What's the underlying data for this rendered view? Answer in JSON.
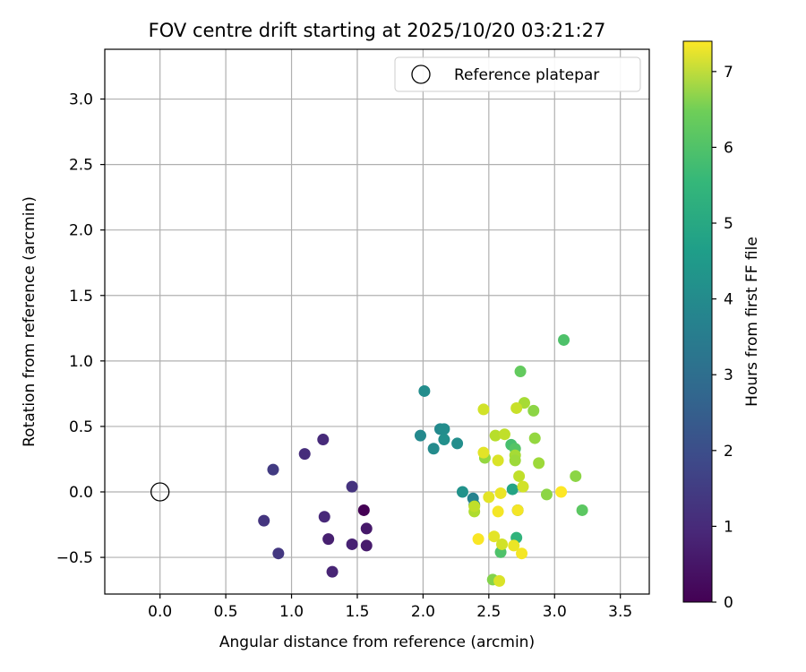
{
  "chart_data": {
    "type": "scatter",
    "title": "FOV centre drift starting at 2025/10/20 03:21:27",
    "xlabel": "Angular distance from reference (arcmin)",
    "ylabel": "Rotation from reference (arcmin)",
    "xlim": [
      -0.42,
      3.72
    ],
    "ylim": [
      -0.78,
      3.38
    ],
    "xticks": [
      0.0,
      0.5,
      1.0,
      1.5,
      2.0,
      2.5,
      3.0,
      3.5
    ],
    "xtick_labels": [
      "0.0",
      "0.5",
      "1.0",
      "1.5",
      "2.0",
      "2.5",
      "3.0",
      "3.5"
    ],
    "yticks": [
      -0.5,
      0.0,
      0.5,
      1.0,
      1.5,
      2.0,
      2.5,
      3.0
    ],
    "ytick_labels": [
      "−0.5",
      "0.0",
      "0.5",
      "1.0",
      "1.5",
      "2.0",
      "2.5",
      "3.0"
    ],
    "grid": true,
    "legend": {
      "position": "top-right",
      "entries": [
        "Reference platepar"
      ]
    },
    "reference_point": {
      "x": 0.0,
      "y": 0.0,
      "label": "Reference platepar"
    },
    "colorbar": {
      "label": "Hours from first FF file",
      "colormap": "viridis",
      "range": [
        0,
        7.4
      ],
      "ticks": [
        0,
        1,
        2,
        3,
        4,
        5,
        6,
        7
      ],
      "tick_labels": [
        "0",
        "1",
        "2",
        "3",
        "4",
        "5",
        "6",
        "7"
      ]
    },
    "points": [
      {
        "x": 1.55,
        "y": -0.14,
        "c": 0.0
      },
      {
        "x": 1.57,
        "y": -0.28,
        "c": 0.5
      },
      {
        "x": 1.57,
        "y": -0.41,
        "c": 0.55
      },
      {
        "x": 1.46,
        "y": -0.4,
        "c": 0.7
      },
      {
        "x": 1.31,
        "y": -0.61,
        "c": 0.75
      },
      {
        "x": 1.28,
        "y": -0.36,
        "c": 0.65
      },
      {
        "x": 1.25,
        "y": -0.19,
        "c": 0.85
      },
      {
        "x": 1.46,
        "y": 0.04,
        "c": 1.1
      },
      {
        "x": 1.24,
        "y": 0.4,
        "c": 0.9
      },
      {
        "x": 1.1,
        "y": 0.29,
        "c": 0.95
      },
      {
        "x": 0.86,
        "y": 0.17,
        "c": 1.3
      },
      {
        "x": 0.79,
        "y": -0.22,
        "c": 1.15
      },
      {
        "x": 0.9,
        "y": -0.47,
        "c": 1.2
      },
      {
        "x": 2.01,
        "y": 0.77,
        "c": 3.6
      },
      {
        "x": 1.98,
        "y": 0.43,
        "c": 3.5
      },
      {
        "x": 2.08,
        "y": 0.33,
        "c": 3.55
      },
      {
        "x": 2.13,
        "y": 0.48,
        "c": 3.5
      },
      {
        "x": 2.16,
        "y": 0.48,
        "c": 3.6
      },
      {
        "x": 2.16,
        "y": 0.4,
        "c": 3.7
      },
      {
        "x": 2.26,
        "y": 0.37,
        "c": 3.65
      },
      {
        "x": 2.3,
        "y": 0.0,
        "c": 3.75
      },
      {
        "x": 2.38,
        "y": -0.05,
        "c": 3.3
      },
      {
        "x": 2.39,
        "y": -0.1,
        "c": 3.4
      },
      {
        "x": 2.68,
        "y": 0.02,
        "c": 4.3
      },
      {
        "x": 2.72,
        "y": -0.14,
        "c": 2.9
      },
      {
        "x": 2.71,
        "y": -0.35,
        "c": 4.8
      },
      {
        "x": 2.74,
        "y": 0.92,
        "c": 5.6
      },
      {
        "x": 3.07,
        "y": 1.16,
        "c": 5.3
      },
      {
        "x": 2.67,
        "y": 0.36,
        "c": 5.2
      },
      {
        "x": 2.7,
        "y": 0.33,
        "c": 5.4
      },
      {
        "x": 3.21,
        "y": -0.14,
        "c": 5.5
      },
      {
        "x": 2.59,
        "y": -0.46,
        "c": 5.3
      },
      {
        "x": 2.53,
        "y": -0.67,
        "c": 6.0
      },
      {
        "x": 2.39,
        "y": -0.15,
        "c": 6.5
      },
      {
        "x": 2.39,
        "y": -0.11,
        "c": 6.7
      },
      {
        "x": 2.47,
        "y": 0.26,
        "c": 6.2
      },
      {
        "x": 2.55,
        "y": 0.43,
        "c": 6.6
      },
      {
        "x": 2.62,
        "y": 0.44,
        "c": 6.7
      },
      {
        "x": 2.7,
        "y": 0.28,
        "c": 6.4
      },
      {
        "x": 2.7,
        "y": 0.24,
        "c": 6.3
      },
      {
        "x": 2.73,
        "y": 0.12,
        "c": 6.7
      },
      {
        "x": 2.76,
        "y": 0.04,
        "c": 6.9
      },
      {
        "x": 2.77,
        "y": 0.68,
        "c": 6.4
      },
      {
        "x": 2.84,
        "y": 0.62,
        "c": 6.1
      },
      {
        "x": 2.85,
        "y": 0.41,
        "c": 6.2
      },
      {
        "x": 2.88,
        "y": 0.22,
        "c": 6.3
      },
      {
        "x": 2.94,
        "y": -0.02,
        "c": 6.1
      },
      {
        "x": 3.16,
        "y": 0.12,
        "c": 6.1
      },
      {
        "x": 2.71,
        "y": 0.64,
        "c": 6.8
      },
      {
        "x": 2.46,
        "y": 0.63,
        "c": 6.9
      },
      {
        "x": 2.46,
        "y": 0.3,
        "c": 7.1
      },
      {
        "x": 2.57,
        "y": 0.24,
        "c": 7.0
      },
      {
        "x": 2.5,
        "y": -0.04,
        "c": 7.1
      },
      {
        "x": 2.59,
        "y": -0.01,
        "c": 7.2
      },
      {
        "x": 2.57,
        "y": -0.15,
        "c": 7.3
      },
      {
        "x": 2.72,
        "y": -0.14,
        "c": 7.3
      },
      {
        "x": 2.42,
        "y": -0.36,
        "c": 7.35
      },
      {
        "x": 2.54,
        "y": -0.34,
        "c": 7.1
      },
      {
        "x": 2.6,
        "y": -0.4,
        "c": 6.9
      },
      {
        "x": 2.69,
        "y": -0.41,
        "c": 7.2
      },
      {
        "x": 2.75,
        "y": -0.47,
        "c": 7.3
      },
      {
        "x": 2.58,
        "y": -0.68,
        "c": 7.0
      },
      {
        "x": 3.05,
        "y": 0.0,
        "c": 7.4
      }
    ]
  }
}
